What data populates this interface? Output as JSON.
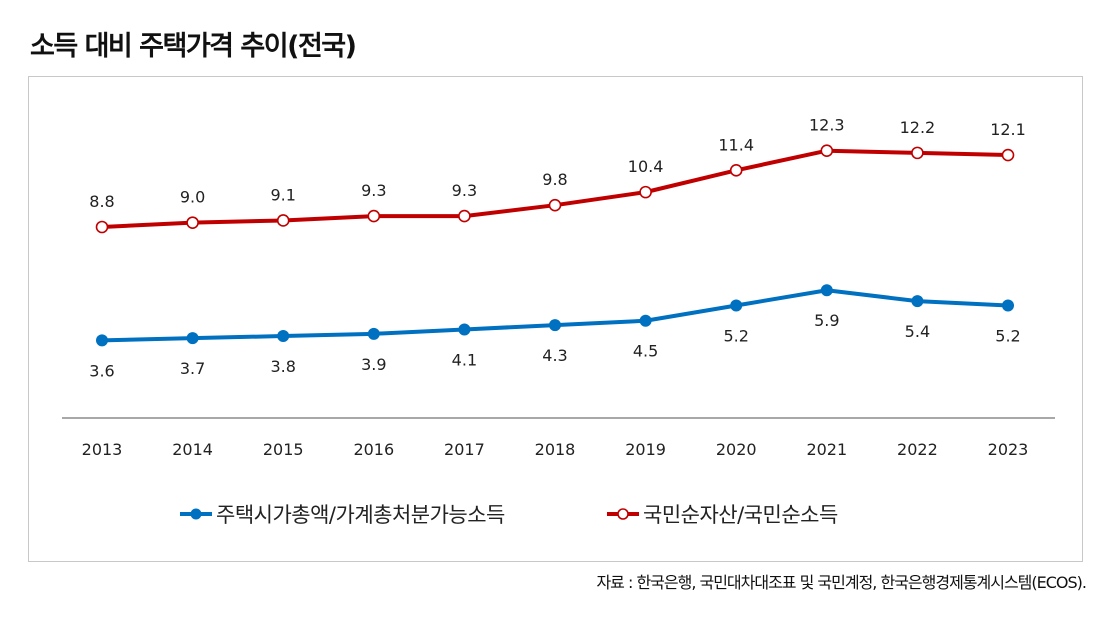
{
  "title": "소득 대비 주택가격 추이(전국)",
  "source": "자료 : 한국은행, 국민대차대조표 및 국민계정, 한국은행경제통계시스템(ECOS).",
  "chart_data": {
    "type": "line",
    "title": "소득 대비 주택가격 추이(전국)",
    "xlabel": "",
    "ylabel": "",
    "grid": false,
    "legend_position": "bottom",
    "categories": [
      "2013",
      "2014",
      "2015",
      "2016",
      "2017",
      "2018",
      "2019",
      "2020",
      "2021",
      "2022",
      "2023"
    ],
    "series": [
      {
        "name": "주택시가총액/가계총처분가능소득",
        "color": "#0070c0",
        "marker": "filled-circle",
        "label_position": "below",
        "values": [
          3.6,
          3.7,
          3.8,
          3.9,
          4.1,
          4.3,
          4.5,
          5.2,
          5.9,
          5.4,
          5.2
        ],
        "labels": [
          "3.6",
          "3.7",
          "3.8",
          "3.9",
          "4.1",
          "4.3",
          "4.5",
          "5.2",
          "5.9",
          "5.4",
          "5.2"
        ]
      },
      {
        "name": "국민순자산/국민순소득",
        "color": "#c00000",
        "marker": "hollow-circle",
        "label_position": "above",
        "values": [
          8.8,
          9.0,
          9.1,
          9.3,
          9.3,
          9.8,
          10.4,
          11.4,
          12.3,
          12.2,
          12.1
        ],
        "labels": [
          "8.8",
          "9.0",
          "9.1",
          "9.3",
          "9.3",
          "9.8",
          "10.4",
          "11.4",
          "12.3",
          "12.2",
          "12.1"
        ]
      }
    ]
  }
}
